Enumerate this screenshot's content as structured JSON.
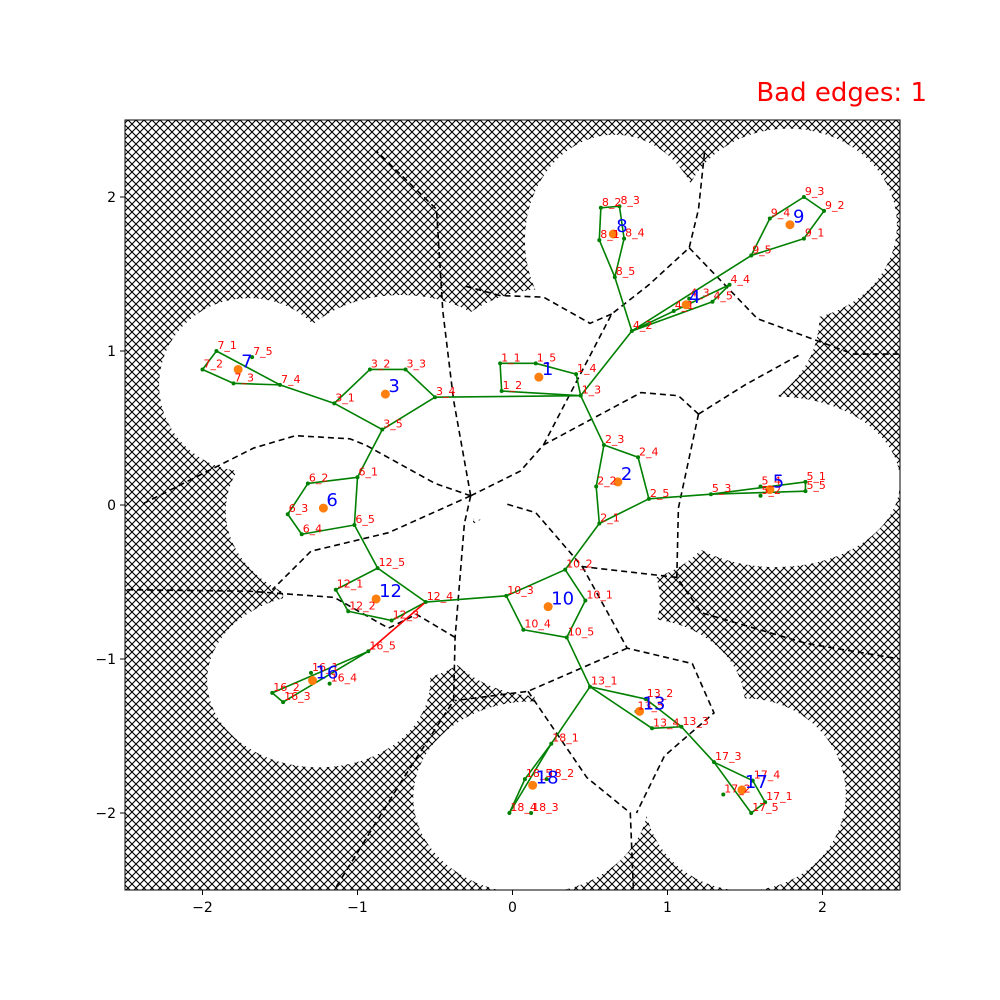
{
  "title_label": "Bad edges: 1",
  "colors": {
    "edge": "#008000",
    "bad_edge": "#ff0000",
    "center": "#ff7f0e",
    "node_label": "#ff0000",
    "center_label": "#0000ff",
    "voronoi": "#000000",
    "obstacle_hatch": "#000000"
  },
  "chart_data": {
    "type": "scatter",
    "title": "Bad edges: 1",
    "xlim": [
      -2.5,
      2.5
    ],
    "ylim": [
      -2.5,
      2.5
    ],
    "xticks": [
      -2,
      -1,
      0,
      1,
      2
    ],
    "yticks": [
      -2,
      -1,
      0,
      1,
      2
    ],
    "xtick_labels": [
      "−2",
      "−1",
      "0",
      "1",
      "2"
    ],
    "ytick_labels": [
      "−2",
      "−1",
      "0",
      "1",
      "2"
    ],
    "centers": [
      {
        "id": "1",
        "x": 0.17,
        "y": 0.83
      },
      {
        "id": "2",
        "x": 0.68,
        "y": 0.15
      },
      {
        "id": "3",
        "x": -0.82,
        "y": 0.72
      },
      {
        "id": "4",
        "x": 1.12,
        "y": 1.3
      },
      {
        "id": "5",
        "x": 1.66,
        "y": 0.1
      },
      {
        "id": "6",
        "x": -1.22,
        "y": -0.02
      },
      {
        "id": "7",
        "x": -1.77,
        "y": 0.88
      },
      {
        "id": "8",
        "x": 0.65,
        "y": 1.76
      },
      {
        "id": "9",
        "x": 1.79,
        "y": 1.82
      },
      {
        "id": "10",
        "x": 0.23,
        "y": -0.66
      },
      {
        "id": "12",
        "x": -0.88,
        "y": -0.61
      },
      {
        "id": "13",
        "x": 0.82,
        "y": -1.34
      },
      {
        "id": "16",
        "x": -1.29,
        "y": -1.14
      },
      {
        "id": "17",
        "x": 1.48,
        "y": -1.85
      },
      {
        "id": "18",
        "x": 0.13,
        "y": -1.82
      }
    ],
    "nodes": [
      {
        "id": "1_1",
        "x": -0.08,
        "y": 0.92
      },
      {
        "id": "1_2",
        "x": -0.07,
        "y": 0.74
      },
      {
        "id": "1_5",
        "x": 0.15,
        "y": 0.92
      },
      {
        "id": "1_4",
        "x": 0.41,
        "y": 0.85
      },
      {
        "id": "1_3",
        "x": 0.44,
        "y": 0.71
      },
      {
        "id": "2_3",
        "x": 0.59,
        "y": 0.39
      },
      {
        "id": "2_4",
        "x": 0.81,
        "y": 0.31
      },
      {
        "id": "2_2",
        "x": 0.54,
        "y": 0.12
      },
      {
        "id": "2_5",
        "x": 0.88,
        "y": 0.04
      },
      {
        "id": "2_1",
        "x": 0.56,
        "y": -0.12
      },
      {
        "id": "3_2",
        "x": -0.92,
        "y": 0.88
      },
      {
        "id": "3_3",
        "x": -0.69,
        "y": 0.88
      },
      {
        "id": "3_1",
        "x": -1.15,
        "y": 0.66
      },
      {
        "id": "3_4",
        "x": -0.5,
        "y": 0.7
      },
      {
        "id": "3_5",
        "x": -0.84,
        "y": 0.49
      },
      {
        "id": "4_4",
        "x": 1.4,
        "y": 1.43
      },
      {
        "id": "4_3",
        "x": 1.14,
        "y": 1.34
      },
      {
        "id": "4_5",
        "x": 1.29,
        "y": 1.32
      },
      {
        "id": "4_1",
        "x": 1.04,
        "y": 1.26
      },
      {
        "id": "4_2",
        "x": 0.77,
        "y": 1.13
      },
      {
        "id": "5_1",
        "x": 1.89,
        "y": 0.15
      },
      {
        "id": "5_4",
        "x": 1.6,
        "y": 0.12
      },
      {
        "id": "5_5",
        "x": 1.89,
        "y": 0.09
      },
      {
        "id": "5_3",
        "x": 1.28,
        "y": 0.07
      },
      {
        "id": "5_2",
        "x": 1.6,
        "y": 0.06
      },
      {
        "id": "6_2",
        "x": -1.32,
        "y": 0.14
      },
      {
        "id": "6_1",
        "x": -1.0,
        "y": 0.18
      },
      {
        "id": "6_3",
        "x": -1.45,
        "y": -0.06
      },
      {
        "id": "6_5",
        "x": -1.02,
        "y": -0.13
      },
      {
        "id": "6_4",
        "x": -1.36,
        "y": -0.19
      },
      {
        "id": "7_1",
        "x": -1.91,
        "y": 1.0
      },
      {
        "id": "7_5",
        "x": -1.68,
        "y": 0.96
      },
      {
        "id": "7_2",
        "x": -2.0,
        "y": 0.88
      },
      {
        "id": "7_3",
        "x": -1.8,
        "y": 0.79
      },
      {
        "id": "7_4",
        "x": -1.5,
        "y": 0.78
      },
      {
        "id": "8_2",
        "x": 0.57,
        "y": 1.93
      },
      {
        "id": "8_3",
        "x": 0.69,
        "y": 1.94
      },
      {
        "id": "8_1",
        "x": 0.56,
        "y": 1.72
      },
      {
        "id": "8_4",
        "x": 0.72,
        "y": 1.73
      },
      {
        "id": "8_5",
        "x": 0.66,
        "y": 1.48
      },
      {
        "id": "9_3",
        "x": 1.88,
        "y": 2.0
      },
      {
        "id": "9_2",
        "x": 2.01,
        "y": 1.91
      },
      {
        "id": "9_4",
        "x": 1.66,
        "y": 1.86
      },
      {
        "id": "9_1",
        "x": 1.88,
        "y": 1.73
      },
      {
        "id": "9_5",
        "x": 1.54,
        "y": 1.62
      },
      {
        "id": "10_2",
        "x": 0.34,
        "y": -0.42
      },
      {
        "id": "10_3",
        "x": -0.04,
        "y": -0.59
      },
      {
        "id": "10_1",
        "x": 0.47,
        "y": -0.62
      },
      {
        "id": "10_4",
        "x": 0.07,
        "y": -0.81
      },
      {
        "id": "10_5",
        "x": 0.35,
        "y": -0.86
      },
      {
        "id": "12_5",
        "x": -0.87,
        "y": -0.41
      },
      {
        "id": "12_1",
        "x": -1.14,
        "y": -0.55
      },
      {
        "id": "12_4",
        "x": -0.56,
        "y": -0.63
      },
      {
        "id": "12_2",
        "x": -1.06,
        "y": -0.69
      },
      {
        "id": "12_3",
        "x": -0.78,
        "y": -0.75
      },
      {
        "id": "13_1",
        "x": 0.5,
        "y": -1.18
      },
      {
        "id": "13_2",
        "x": 0.86,
        "y": -1.26
      },
      {
        "id": "13_5",
        "x": 0.8,
        "y": -1.34
      },
      {
        "id": "13_4",
        "x": 0.9,
        "y": -1.45
      },
      {
        "id": "13_3",
        "x": 1.09,
        "y": -1.44
      },
      {
        "id": "16_5",
        "x": -0.93,
        "y": -0.95
      },
      {
        "id": "16_1",
        "x": -1.3,
        "y": -1.09
      },
      {
        "id": "16_4",
        "x": -1.18,
        "y": -1.16
      },
      {
        "id": "16_2",
        "x": -1.55,
        "y": -1.22
      },
      {
        "id": "16_3",
        "x": -1.48,
        "y": -1.28
      },
      {
        "id": "17_3",
        "x": 1.3,
        "y": -1.67
      },
      {
        "id": "17_4",
        "x": 1.55,
        "y": -1.79
      },
      {
        "id": "17_2",
        "x": 1.36,
        "y": -1.88
      },
      {
        "id": "17_1",
        "x": 1.63,
        "y": -1.93
      },
      {
        "id": "17_5",
        "x": 1.54,
        "y": -2.0
      },
      {
        "id": "18_1",
        "x": 0.25,
        "y": -1.55
      },
      {
        "id": "18_5",
        "x": 0.08,
        "y": -1.78
      },
      {
        "id": "18_2",
        "x": 0.22,
        "y": -1.78
      },
      {
        "id": "18_4",
        "x": -0.02,
        "y": -2.0
      },
      {
        "id": "18_3",
        "x": 0.12,
        "y": -2.0
      }
    ],
    "edges": [
      [
        "1_1",
        "1_2"
      ],
      [
        "1_1",
        "1_5"
      ],
      [
        "1_5",
        "1_4"
      ],
      [
        "1_4",
        "1_3"
      ],
      [
        "1_2",
        "1_3"
      ],
      [
        "2_3",
        "2_4"
      ],
      [
        "2_4",
        "2_5"
      ],
      [
        "2_5",
        "2_1"
      ],
      [
        "2_1",
        "2_2"
      ],
      [
        "2_2",
        "2_3"
      ],
      [
        "3_1",
        "3_2"
      ],
      [
        "3_2",
        "3_3"
      ],
      [
        "3_3",
        "3_4"
      ],
      [
        "3_4",
        "3_5"
      ],
      [
        "3_5",
        "3_1"
      ],
      [
        "4_2",
        "4_4"
      ],
      [
        "4_4",
        "4_5"
      ],
      [
        "4_5",
        "4_2"
      ],
      [
        "5_3",
        "5_1"
      ],
      [
        "5_1",
        "5_5"
      ],
      [
        "5_5",
        "5_3"
      ],
      [
        "6_1",
        "6_2"
      ],
      [
        "6_2",
        "6_3"
      ],
      [
        "6_3",
        "6_4"
      ],
      [
        "6_4",
        "6_5"
      ],
      [
        "6_5",
        "6_1"
      ],
      [
        "7_1",
        "7_2"
      ],
      [
        "7_2",
        "7_3"
      ],
      [
        "7_3",
        "7_4"
      ],
      [
        "7_1",
        "7_4"
      ],
      [
        "8_1",
        "8_2"
      ],
      [
        "8_2",
        "8_3"
      ],
      [
        "8_3",
        "8_4"
      ],
      [
        "8_4",
        "8_5"
      ],
      [
        "8_5",
        "8_1"
      ],
      [
        "9_3",
        "9_2"
      ],
      [
        "9_2",
        "9_1"
      ],
      [
        "9_1",
        "9_5"
      ],
      [
        "9_5",
        "9_4"
      ],
      [
        "9_4",
        "9_3"
      ],
      [
        "10_2",
        "10_1"
      ],
      [
        "10_1",
        "10_5"
      ],
      [
        "10_5",
        "10_4"
      ],
      [
        "10_4",
        "10_3"
      ],
      [
        "10_3",
        "10_2"
      ],
      [
        "12_5",
        "12_4"
      ],
      [
        "12_4",
        "12_3"
      ],
      [
        "12_3",
        "12_2"
      ],
      [
        "12_2",
        "12_1"
      ],
      [
        "12_1",
        "12_5"
      ],
      [
        "13_1",
        "13_2"
      ],
      [
        "13_2",
        "13_3"
      ],
      [
        "13_3",
        "13_4"
      ],
      [
        "13_4",
        "13_1"
      ],
      [
        "16_5",
        "16_2"
      ],
      [
        "16_2",
        "16_3"
      ],
      [
        "16_3",
        "16_5"
      ],
      [
        "17_3",
        "17_4"
      ],
      [
        "17_4",
        "17_1"
      ],
      [
        "17_1",
        "17_5"
      ],
      [
        "17_5",
        "17_3"
      ],
      [
        "18_1",
        "18_5"
      ],
      [
        "18_5",
        "18_4"
      ],
      [
        "18_4",
        "18_1"
      ],
      [
        "1_3",
        "3_4"
      ],
      [
        "3_1",
        "7_4"
      ],
      [
        "3_5",
        "6_1"
      ],
      [
        "6_5",
        "12_5"
      ],
      [
        "12_4",
        "10_3"
      ],
      [
        "10_2",
        "2_1"
      ],
      [
        "2_3",
        "1_3"
      ],
      [
        "1_3",
        "4_2"
      ],
      [
        "4_2",
        "8_5"
      ],
      [
        "4_2",
        "9_5"
      ],
      [
        "2_5",
        "5_3"
      ],
      [
        "10_5",
        "13_1"
      ],
      [
        "13_1",
        "18_1"
      ],
      [
        "13_3",
        "17_3"
      ]
    ],
    "bad_edges": [
      [
        "12_4",
        "16_5"
      ]
    ],
    "voronoi_lines": [
      [
        [
          -0.27,
          0.06
        ],
        [
          -0.38,
          0.68
        ],
        [
          -0.45,
          1.26
        ],
        [
          -0.49,
          1.92
        ],
        [
          -0.88,
          2.3
        ]
      ],
      [
        [
          -0.27,
          0.06
        ],
        [
          0.05,
          0.22
        ],
        [
          0.2,
          0.39
        ],
        [
          0.83,
          0.73
        ],
        [
          1.07,
          0.71
        ],
        [
          1.2,
          0.59
        ]
      ],
      [
        [
          -0.27,
          0.06
        ],
        [
          -0.31,
          -0.12
        ],
        [
          -0.37,
          -0.86
        ],
        [
          -0.38,
          -1.27
        ],
        [
          -0.72,
          -1.8
        ],
        [
          -1.15,
          -2.5
        ]
      ],
      [
        [
          -0.27,
          0.06
        ],
        [
          -0.5,
          0.14
        ],
        [
          -0.95,
          0.39
        ],
        [
          -1.05,
          0.43
        ],
        [
          -1.4,
          0.45
        ],
        [
          -1.67,
          0.37
        ],
        [
          -2.4,
          0.0
        ]
      ],
      [
        [
          -0.27,
          0.06
        ],
        [
          -0.8,
          -0.18
        ],
        [
          -1.3,
          -0.3
        ],
        [
          -1.55,
          -0.55
        ]
      ],
      [
        [
          0.2,
          0.39
        ],
        [
          0.64,
          1.24
        ],
        [
          0.88,
          1.43
        ],
        [
          1.14,
          1.67
        ],
        [
          1.2,
          1.92
        ],
        [
          1.24,
          2.3
        ]
      ],
      [
        [
          0.64,
          1.24
        ],
        [
          0.5,
          1.18
        ],
        [
          0.2,
          1.35
        ],
        [
          -0.08,
          1.36
        ],
        [
          -0.3,
          1.42
        ]
      ],
      [
        [
          1.14,
          1.67
        ],
        [
          1.58,
          1.21
        ],
        [
          2.2,
          0.98
        ],
        [
          2.5,
          0.98
        ]
      ],
      [
        [
          1.2,
          0.59
        ],
        [
          1.5,
          0.78
        ],
        [
          1.86,
          0.98
        ]
      ],
      [
        [
          1.2,
          0.59
        ],
        [
          1.07,
          -0.02
        ],
        [
          1.06,
          -0.47
        ],
        [
          1.22,
          -0.7
        ],
        [
          1.9,
          -0.9
        ],
        [
          2.5,
          -1.0
        ]
      ],
      [
        [
          1.06,
          -0.47
        ],
        [
          0.45,
          -0.4
        ],
        [
          0.15,
          -0.05
        ],
        [
          -0.05,
          0.01
        ]
      ],
      [
        [
          0.45,
          -0.4
        ],
        [
          0.74,
          -0.93
        ],
        [
          1.16,
          -1.03
        ],
        [
          1.3,
          -1.35
        ],
        [
          0.98,
          -1.63
        ],
        [
          0.8,
          -2.0
        ]
      ],
      [
        [
          0.74,
          -0.93
        ],
        [
          0.1,
          -1.21
        ],
        [
          -0.37,
          -1.27
        ]
      ],
      [
        [
          -0.37,
          -0.86
        ],
        [
          -0.62,
          -0.71
        ],
        [
          -0.8,
          -0.8
        ],
        [
          -1.15,
          -0.6
        ],
        [
          -1.7,
          -0.56
        ],
        [
          -2.5,
          -0.55
        ]
      ],
      [
        [
          0.1,
          -1.21
        ],
        [
          0.48,
          -1.77
        ],
        [
          0.76,
          -2.0
        ],
        [
          0.78,
          -2.5
        ]
      ]
    ],
    "white_regions": [
      {
        "cx": -1.7,
        "cy": 0.78,
        "rx": 0.58,
        "ry": 0.56
      },
      {
        "cx": -0.72,
        "cy": 0.76,
        "rx": 0.78,
        "ry": 0.6
      },
      {
        "cx": 0.24,
        "cy": 0.78,
        "rx": 0.78,
        "ry": 0.62
      },
      {
        "cx": 1.18,
        "cy": 1.22,
        "rx": 0.8,
        "ry": 0.68
      },
      {
        "cx": 0.66,
        "cy": 1.72,
        "rx": 0.58,
        "ry": 0.68
      },
      {
        "cx": 1.78,
        "cy": 1.82,
        "rx": 0.7,
        "ry": 0.62
      },
      {
        "cx": 0.7,
        "cy": 0.15,
        "rx": 0.7,
        "ry": 0.65
      },
      {
        "cx": 1.7,
        "cy": 0.15,
        "rx": 0.8,
        "ry": 0.55
      },
      {
        "cx": -1.05,
        "cy": -0.04,
        "rx": 0.8,
        "ry": 0.62
      },
      {
        "cx": -0.78,
        "cy": -0.6,
        "rx": 0.7,
        "ry": 0.55
      },
      {
        "cx": 0.2,
        "cy": -0.62,
        "rx": 0.75,
        "ry": 0.62
      },
      {
        "cx": -1.25,
        "cy": -1.14,
        "rx": 0.72,
        "ry": 0.56
      },
      {
        "cx": 0.82,
        "cy": -1.3,
        "rx": 0.68,
        "ry": 0.56
      },
      {
        "cx": 0.12,
        "cy": -1.9,
        "rx": 0.76,
        "ry": 0.62
      },
      {
        "cx": 1.5,
        "cy": -1.88,
        "rx": 0.65,
        "ry": 0.62
      },
      {
        "cx": -0.1,
        "cy": 0.2,
        "rx": 0.55,
        "ry": 0.3
      }
    ]
  }
}
